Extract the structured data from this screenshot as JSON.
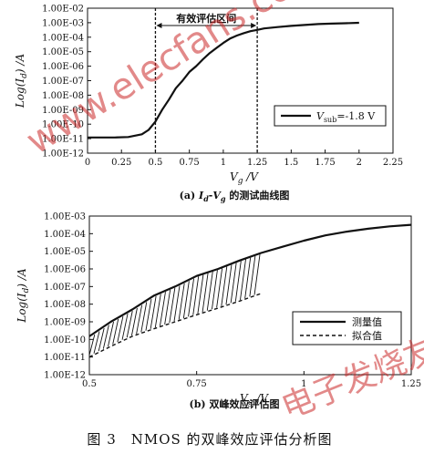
{
  "captions": {
    "a": "(a) Iₐ-Vg 的测试曲线图",
    "b": "(b) 双峰效应评估图",
    "figure": "图 3　NMOS 的双峰效应评估分析图"
  },
  "watermarks": {
    "site": "www.elecfans.com",
    "brand": "电子发烧友"
  },
  "chart_data": [
    {
      "type": "line",
      "log_y": true,
      "xlabel": "Vg /V",
      "ylabel": "Log(Id) /A",
      "xlim": [
        0,
        2.25
      ],
      "ylim": [
        1e-12,
        0.01
      ],
      "x_ticks": [
        "0",
        "0.25",
        "0.5",
        "0.75",
        "1",
        "1.25",
        "1.5",
        "1.75",
        "2",
        "2.25"
      ],
      "y_ticks": [
        "1.00E-12",
        "1.00E-11",
        "1.00E-10",
        "1.00E-09",
        "1.00E-08",
        "1.00E-07",
        "1.00E-06",
        "1.00E-05",
        "1.00E-04",
        "1.00E-03",
        "1.00E-02"
      ],
      "grid": false,
      "annotation": {
        "text": "有效评估区间",
        "x_start": 0.5,
        "x_end": 1.25
      },
      "legend": {
        "label": "Vsub=-1.8 V",
        "placement": "right"
      },
      "series": [
        {
          "name": "Vsub=-1.8 V",
          "x": [
            0,
            0.1,
            0.2,
            0.3,
            0.4,
            0.45,
            0.5,
            0.55,
            0.6,
            0.65,
            0.7,
            0.75,
            0.8,
            0.85,
            0.9,
            0.95,
            1.0,
            1.05,
            1.1,
            1.15,
            1.2,
            1.25,
            1.3,
            1.4,
            1.5,
            1.6,
            1.7,
            1.8,
            1.9,
            2.0
          ],
          "y": [
            1.2e-11,
            1.2e-11,
            1.2e-11,
            1.3e-11,
            2e-11,
            4e-11,
            1.5e-10,
            1e-09,
            5e-09,
            3e-08,
            1e-07,
            4e-07,
            1e-06,
            3e-06,
            8e-06,
            1.8e-05,
            4e-05,
            8e-05,
            0.00013,
            0.00019,
            0.00026,
            0.00032,
            0.0004,
            0.0005,
            0.0006,
            0.0007,
            0.0008,
            0.00086,
            0.00092,
            0.00098
          ]
        }
      ]
    },
    {
      "type": "line",
      "log_y": true,
      "xlabel": "Vg /V",
      "ylabel": "Log(Id) /A",
      "xlim": [
        0.5,
        1.25
      ],
      "ylim": [
        1e-12,
        0.001
      ],
      "x_ticks": [
        "0.5",
        "0.75",
        "1",
        "1.25"
      ],
      "y_ticks": [
        "1.00E-12",
        "1.00E-11",
        "1.00E-10",
        "1.00E-09",
        "1.00E-08",
        "1.00E-07",
        "1.00E-06",
        "1.00E-05",
        "1.00E-04",
        "1.00E-03"
      ],
      "grid": false,
      "legend": {
        "placement": "right"
      },
      "series": [
        {
          "name": "测量值",
          "style": "solid",
          "x": [
            0.5,
            0.55,
            0.6,
            0.65,
            0.7,
            0.75,
            0.8,
            0.85,
            0.9,
            0.95,
            1.0,
            1.05,
            1.1,
            1.15,
            1.2,
            1.25
          ],
          "y": [
            1.5e-10,
            1e-09,
            5e-09,
            3e-08,
            1e-07,
            4e-07,
            1e-06,
            3e-06,
            8e-06,
            1.8e-05,
            4e-05,
            8e-05,
            0.00013,
            0.00019,
            0.00026,
            0.00032
          ]
        },
        {
          "name": "拟合值",
          "style": "dashed",
          "x": [
            0.5,
            0.55,
            0.6,
            0.65,
            0.7,
            0.75,
            0.8,
            0.85,
            0.9
          ],
          "y": [
            1e-11,
            4e-11,
            1.5e-10,
            4e-10,
            1e-09,
            2.5e-09,
            6e-09,
            1.5e-08,
            4e-08
          ]
        }
      ]
    }
  ]
}
